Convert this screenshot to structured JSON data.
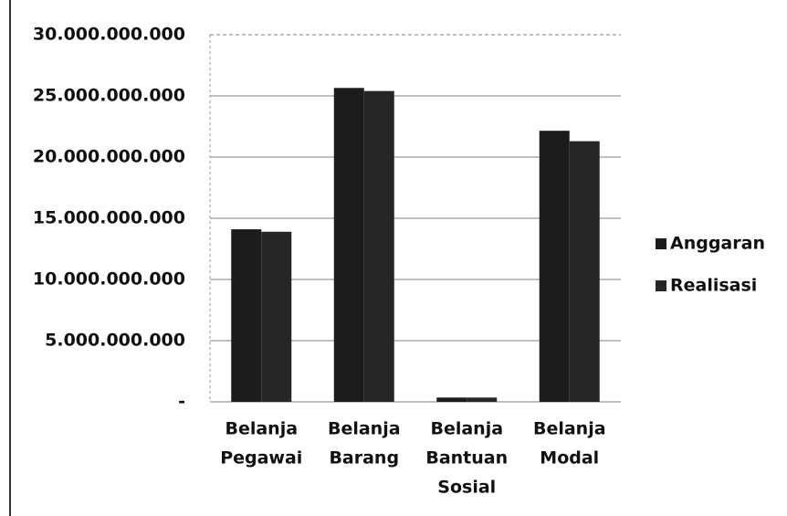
{
  "chart_data": {
    "type": "bar",
    "categories": [
      [
        "Belanja",
        "Pegawai"
      ],
      [
        "Belanja",
        "Barang"
      ],
      [
        "Belanja",
        "Bantuan",
        "Sosial"
      ],
      [
        "Belanja",
        "Modal"
      ]
    ],
    "series": [
      {
        "name": "Anggaran",
        "color": "#1c1c1c",
        "values": [
          14100000000,
          25650000000,
          350000000,
          22150000000
        ]
      },
      {
        "name": "Realisasi",
        "color": "#262626",
        "values": [
          13900000000,
          25400000000,
          350000000,
          21300000000
        ]
      }
    ],
    "ylim": [
      0,
      30000000000
    ],
    "yticks": [
      {
        "value": 0,
        "label": "-"
      },
      {
        "value": 5000000000,
        "label": "5.000.000.000"
      },
      {
        "value": 10000000000,
        "label": "10.000.000.000"
      },
      {
        "value": 15000000000,
        "label": "15.000.000.000"
      },
      {
        "value": 20000000000,
        "label": "20.000.000.000"
      },
      {
        "value": 25000000000,
        "label": "25.000.000.000"
      },
      {
        "value": 30000000000,
        "label": "30.000.000.000"
      }
    ],
    "grid": true,
    "legend": "right"
  }
}
